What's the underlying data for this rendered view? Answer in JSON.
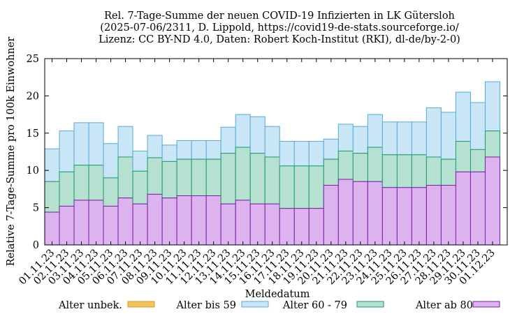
{
  "colors": {
    "alter_unbek": "#f2c45e",
    "alter_bis_59": "#c9e6f7",
    "alter_60_79": "#b6e0d0",
    "alter_ab_80": "#ddb3ef",
    "bis_59_stroke": "#5aaad4",
    "a60_79_stroke": "#1e9a6e",
    "ab80_stroke": "#7a1fa2",
    "unbek_stroke": "#d49d1e"
  },
  "chart_data": {
    "type": "bar",
    "title_lines": [
      "Rel. 7-Tage-Summe der neuen COVID-19 Infizierten in LK Gütersloh",
      "(2025-07-06/2311, D. Lippold, https://covid19-de-stats.sourceforge.io/",
      "Lizenz: CC BY-ND 4.0, Daten: Robert Koch-Institut (RKI), dl-de/by-2-0)"
    ],
    "xlabel": "Meldedatum",
    "ylabel": "Relative 7-Tage-Summe pro 100k Einwohner",
    "ylim": [
      0,
      25
    ],
    "yticks": [
      0,
      5,
      10,
      15,
      20,
      25
    ],
    "grid": false,
    "legend_position": "bottom",
    "stacked": true,
    "categories": [
      "01.11.23",
      "02.11.23",
      "03.11.23",
      "04.11.23",
      "05.11.23",
      "06.11.23",
      "07.11.23",
      "08.11.23",
      "09.11.23",
      "10.11.23",
      "11.11.23",
      "12.11.23",
      "13.11.23",
      "14.11.23",
      "15.11.23",
      "16.11.23",
      "17.11.23",
      "18.11.23",
      "19.11.23",
      "20.11.23",
      "21.11.23",
      "22.11.23",
      "23.11.23",
      "24.11.23",
      "25.11.23",
      "26.11.23",
      "27.11.23",
      "28.11.23",
      "29.11.23",
      "30.11.23",
      "01.12.23"
    ],
    "series": [
      {
        "name": "Alter unbek.",
        "values": [
          0,
          0,
          0,
          0,
          0,
          0,
          0,
          0,
          0,
          0,
          0,
          0,
          0,
          0,
          0,
          0,
          0,
          0,
          0,
          0,
          0,
          0,
          0,
          0,
          0,
          0,
          0,
          0,
          0,
          0,
          0
        ]
      },
      {
        "name": "Alter bis 59",
        "values": [
          4.4,
          5.5,
          5.7,
          5.7,
          4.6,
          4.1,
          2.7,
          3.0,
          2.2,
          2.5,
          2.5,
          2.5,
          3.5,
          4.4,
          4.9,
          4.1,
          3.3,
          3.3,
          3.3,
          2.7,
          3.6,
          3.6,
          4.4,
          4.4,
          4.4,
          4.4,
          6.6,
          6.3,
          6.6,
          6.3,
          6.6
        ]
      },
      {
        "name": "Alter 60 - 79",
        "values": [
          4.1,
          4.6,
          4.7,
          4.7,
          3.8,
          5.5,
          4.4,
          4.9,
          4.9,
          4.9,
          4.9,
          4.9,
          6.8,
          7.1,
          6.8,
          6.3,
          5.7,
          5.7,
          5.7,
          3.5,
          3.8,
          3.8,
          4.6,
          4.4,
          4.4,
          4.4,
          3.8,
          3.5,
          4.1,
          3.0,
          3.5
        ]
      },
      {
        "name": "Alter ab 80",
        "values": [
          4.4,
          5.2,
          6.0,
          6.0,
          5.2,
          6.3,
          5.5,
          6.8,
          6.3,
          6.6,
          6.6,
          6.6,
          5.5,
          6.0,
          5.5,
          5.5,
          4.9,
          4.9,
          4.9,
          8.0,
          8.8,
          8.5,
          8.5,
          7.7,
          7.7,
          7.7,
          8.0,
          8.0,
          9.8,
          9.8,
          11.8
        ]
      }
    ]
  }
}
